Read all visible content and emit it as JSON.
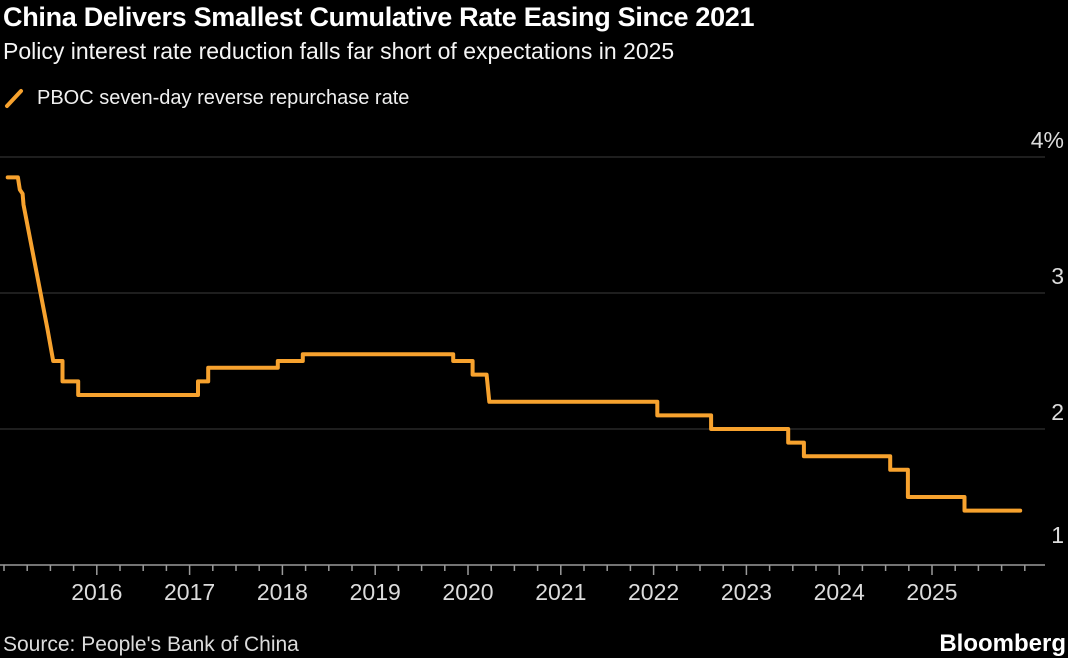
{
  "header": {
    "title": "China Delivers Smallest Cumulative Rate Easing Since 2021",
    "subtitle": "Policy interest rate reduction falls far short of expectations in 2025"
  },
  "legend": {
    "label": "PBOC seven-day reverse repurchase rate",
    "marker": "orange-slash"
  },
  "footer": {
    "source": "Source: People's Bank of China",
    "brand": "Bloomberg"
  },
  "colors": {
    "background": "#000000",
    "line": "#F7A22E",
    "gridline": "#3d3d3d",
    "axis": "#9b9b9b",
    "text_primary": "#ffffff",
    "text_axis": "#dcdcdc"
  },
  "chart_data": {
    "type": "line",
    "line_shape": "step",
    "title": "China Delivers Smallest Cumulative Rate Easing Since 2021",
    "subtitle": "Policy interest rate reduction falls far short of expectations in 2025",
    "unit": "%",
    "grid": true,
    "legend_position": "top-left",
    "x_range": [
      2015,
      2026
    ],
    "y_range": [
      1,
      4
    ],
    "x_ticks": [
      2016,
      2017,
      2018,
      2019,
      2020,
      2021,
      2022,
      2023,
      2024,
      2025
    ],
    "minor_tick_interval_years": 0.25,
    "y_ticks": [
      {
        "value": 4,
        "label": "4%"
      },
      {
        "value": 3,
        "label": "3"
      },
      {
        "value": 2,
        "label": "2"
      },
      {
        "value": 1,
        "label": "1",
        "axis": true
      }
    ],
    "series": [
      {
        "name": "PBOC seven-day reverse repurchase rate",
        "color": "#F7A22E",
        "points": [
          [
            2015.04,
            3.85
          ],
          [
            2015.15,
            3.85
          ],
          [
            2015.17,
            3.76
          ],
          [
            2015.2,
            3.73
          ],
          [
            2015.21,
            3.65
          ],
          [
            2015.47,
            2.73
          ],
          [
            2015.53,
            2.5
          ],
          [
            2015.63,
            2.5
          ],
          [
            2015.63,
            2.35
          ],
          [
            2015.8,
            2.35
          ],
          [
            2015.8,
            2.25
          ],
          [
            2017.09,
            2.25
          ],
          [
            2017.09,
            2.35
          ],
          [
            2017.2,
            2.35
          ],
          [
            2017.2,
            2.45
          ],
          [
            2017.95,
            2.45
          ],
          [
            2017.95,
            2.5
          ],
          [
            2018.22,
            2.5
          ],
          [
            2018.22,
            2.55
          ],
          [
            2019.84,
            2.55
          ],
          [
            2019.84,
            2.5
          ],
          [
            2020.05,
            2.5
          ],
          [
            2020.05,
            2.4
          ],
          [
            2020.2,
            2.4
          ],
          [
            2020.23,
            2.2
          ],
          [
            2022.04,
            2.2
          ],
          [
            2022.04,
            2.1
          ],
          [
            2022.62,
            2.1
          ],
          [
            2022.62,
            2.0
          ],
          [
            2023.45,
            2.0
          ],
          [
            2023.45,
            1.9
          ],
          [
            2023.62,
            1.9
          ],
          [
            2023.62,
            1.8
          ],
          [
            2024.55,
            1.8
          ],
          [
            2024.55,
            1.7
          ],
          [
            2024.74,
            1.7
          ],
          [
            2024.74,
            1.5
          ],
          [
            2025.35,
            1.5
          ],
          [
            2025.35,
            1.4
          ],
          [
            2025.95,
            1.4
          ]
        ]
      }
    ]
  }
}
